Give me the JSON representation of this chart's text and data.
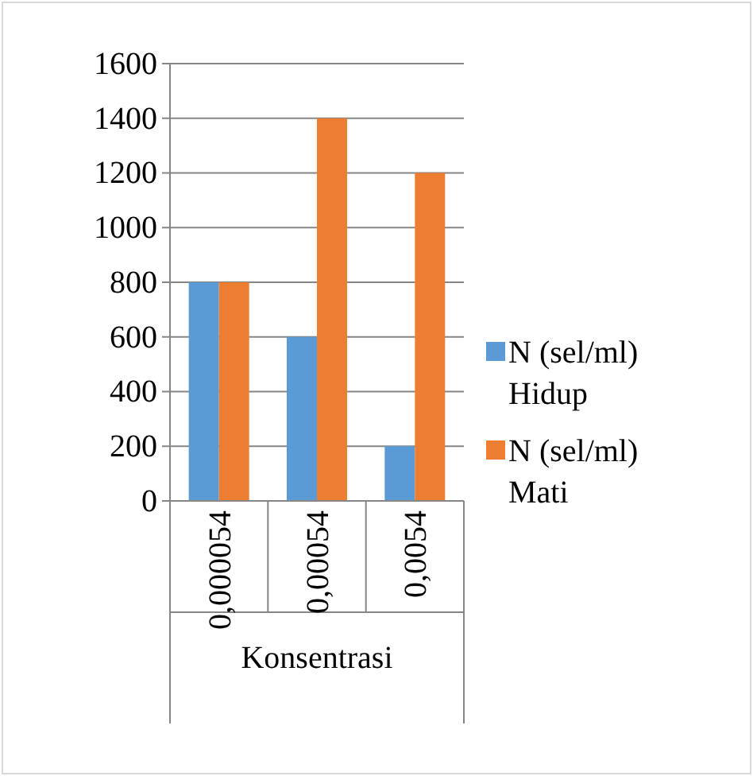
{
  "chart_data": {
    "type": "bar",
    "xlabel": "Konsentrasi",
    "categories": [
      "0,000054",
      "0,00054",
      "0,0054"
    ],
    "series": [
      {
        "name": "N (sel/ml) Hidup",
        "color": "#5b9bd5",
        "values": [
          800,
          600,
          200
        ]
      },
      {
        "name": "N (sel/ml) Mati",
        "color": "#ed7d31",
        "values": [
          800,
          1400,
          1200
        ]
      }
    ],
    "ylim": [
      0,
      1600
    ],
    "yticks": [
      0,
      200,
      400,
      600,
      800,
      1000,
      1200,
      1400,
      1600
    ],
    "grid": "y",
    "legend": "right"
  }
}
